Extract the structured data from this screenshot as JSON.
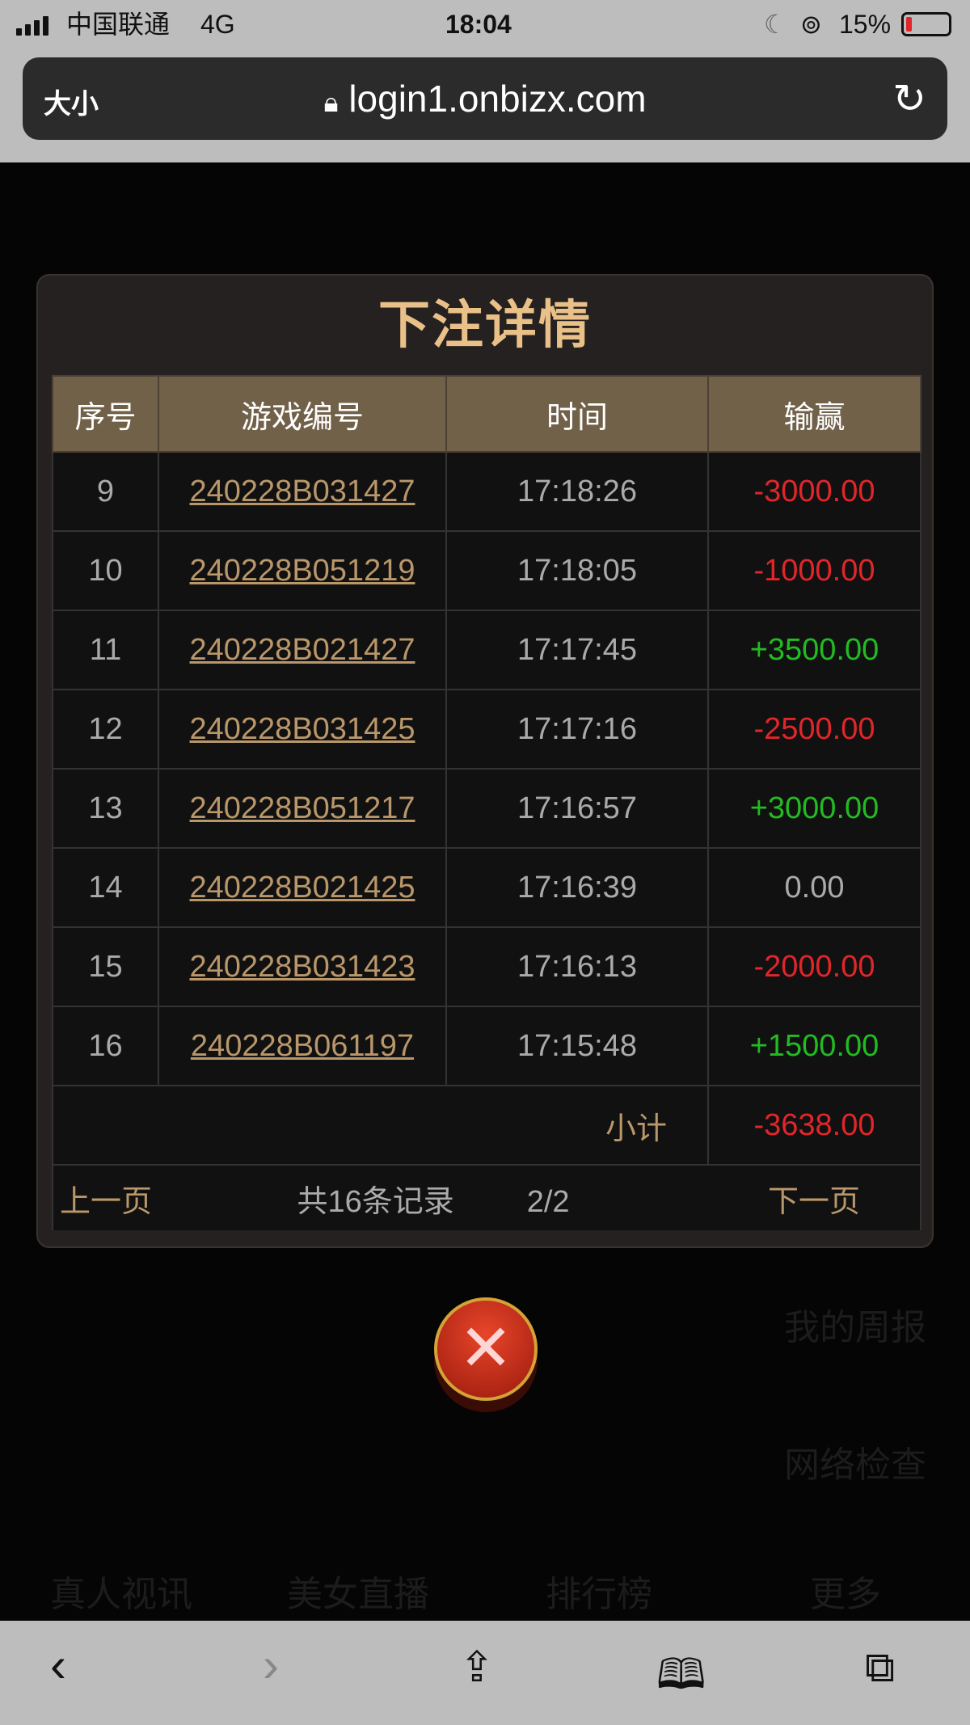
{
  "status_bar": {
    "carrier": "中国联通",
    "network": "4G",
    "time": "18:04",
    "battery": "15%",
    "battery_level": 15
  },
  "address_bar": {
    "text_size": "大小",
    "url": "login1.onbizx.com"
  },
  "background": {
    "side_items": [
      "我的周报",
      "网络检查"
    ],
    "nav": [
      "真人视讯",
      "美女直播",
      "排行榜",
      "更多"
    ]
  },
  "modal": {
    "title": "下注详情",
    "columns": [
      "序号",
      "游戏编号",
      "时间",
      "输赢"
    ],
    "rows": [
      {
        "no": "9",
        "id": "240228B031427",
        "time": "17:18:26",
        "amount": "-3000.00",
        "kind": "neg"
      },
      {
        "no": "10",
        "id": "240228B051219",
        "time": "17:18:05",
        "amount": "-1000.00",
        "kind": "neg"
      },
      {
        "no": "11",
        "id": "240228B021427",
        "time": "17:17:45",
        "amount": "+3500.00",
        "kind": "pos"
      },
      {
        "no": "12",
        "id": "240228B031425",
        "time": "17:17:16",
        "amount": "-2500.00",
        "kind": "neg"
      },
      {
        "no": "13",
        "id": "240228B051217",
        "time": "17:16:57",
        "amount": "+3000.00",
        "kind": "pos"
      },
      {
        "no": "14",
        "id": "240228B021425",
        "time": "17:16:39",
        "amount": "0.00",
        "kind": "zero"
      },
      {
        "no": "15",
        "id": "240228B031423",
        "time": "17:16:13",
        "amount": "-2000.00",
        "kind": "neg"
      },
      {
        "no": "16",
        "id": "240228B061197",
        "time": "17:15:48",
        "amount": "+1500.00",
        "kind": "pos"
      }
    ],
    "subtotal_label": "小计",
    "subtotal": "-3638.00",
    "pager": {
      "prev": "上一页",
      "total": "共16条记录",
      "page": "2/2",
      "next": "下一页"
    }
  },
  "colors": {
    "accent": "#e9c088",
    "header": "#716149",
    "negative": "#e0262a",
    "positive": "#22bb22"
  }
}
